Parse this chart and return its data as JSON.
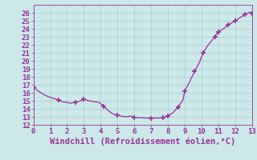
{
  "xlabel": "Windchill (Refroidissement éolien,°C)",
  "xlim": [
    0,
    13
  ],
  "ylim": [
    12,
    27
  ],
  "xticks": [
    0,
    1,
    2,
    3,
    4,
    5,
    6,
    7,
    8,
    9,
    10,
    11,
    12,
    13
  ],
  "yticks": [
    12,
    13,
    14,
    15,
    16,
    17,
    18,
    19,
    20,
    21,
    22,
    23,
    24,
    25,
    26
  ],
  "x": [
    0.0,
    0.3,
    0.6,
    0.9,
    1.2,
    1.5,
    1.7,
    2.0,
    2.2,
    2.5,
    2.8,
    3.0,
    3.3,
    3.6,
    3.9,
    4.2,
    4.5,
    4.7,
    5.0,
    5.2,
    5.5,
    5.8,
    6.0,
    6.3,
    6.6,
    6.9,
    7.0,
    7.2,
    7.5,
    7.7,
    8.0,
    8.3,
    8.6,
    8.9,
    9.0,
    9.3,
    9.6,
    9.9,
    10.1,
    10.4,
    10.8,
    11.0,
    11.3,
    11.6,
    12.0,
    12.3,
    12.6,
    12.9,
    13.0
  ],
  "y": [
    16.7,
    16.2,
    15.8,
    15.5,
    15.3,
    15.1,
    14.9,
    14.8,
    14.7,
    14.8,
    15.0,
    15.2,
    15.0,
    14.9,
    14.8,
    14.3,
    13.7,
    13.4,
    13.2,
    13.1,
    13.0,
    13.1,
    12.9,
    12.9,
    12.85,
    12.85,
    12.8,
    12.85,
    12.85,
    12.9,
    13.1,
    13.5,
    14.2,
    15.1,
    16.2,
    17.4,
    18.7,
    19.9,
    21.0,
    22.0,
    23.0,
    23.6,
    24.0,
    24.5,
    25.0,
    25.4,
    25.8,
    26.1,
    25.9
  ],
  "line_color": "#993399",
  "marker_x": [
    0.0,
    1.5,
    2.5,
    3.0,
    4.2,
    5.0,
    6.0,
    7.0,
    7.7,
    8.0,
    8.6,
    9.0,
    9.6,
    10.1,
    10.8,
    11.0,
    11.6,
    12.0,
    12.6,
    13.0
  ],
  "marker_y": [
    16.7,
    15.1,
    14.8,
    15.2,
    14.3,
    13.2,
    12.9,
    12.8,
    12.9,
    13.1,
    14.2,
    16.2,
    18.7,
    21.0,
    23.0,
    23.6,
    24.5,
    25.0,
    25.8,
    25.9
  ],
  "bg_color": "#cce8e8",
  "grid_color": "#aacccc",
  "tick_label_color": "#993399",
  "xlabel_color": "#993399",
  "tick_fontsize": 6.5,
  "xlabel_fontsize": 7.5
}
